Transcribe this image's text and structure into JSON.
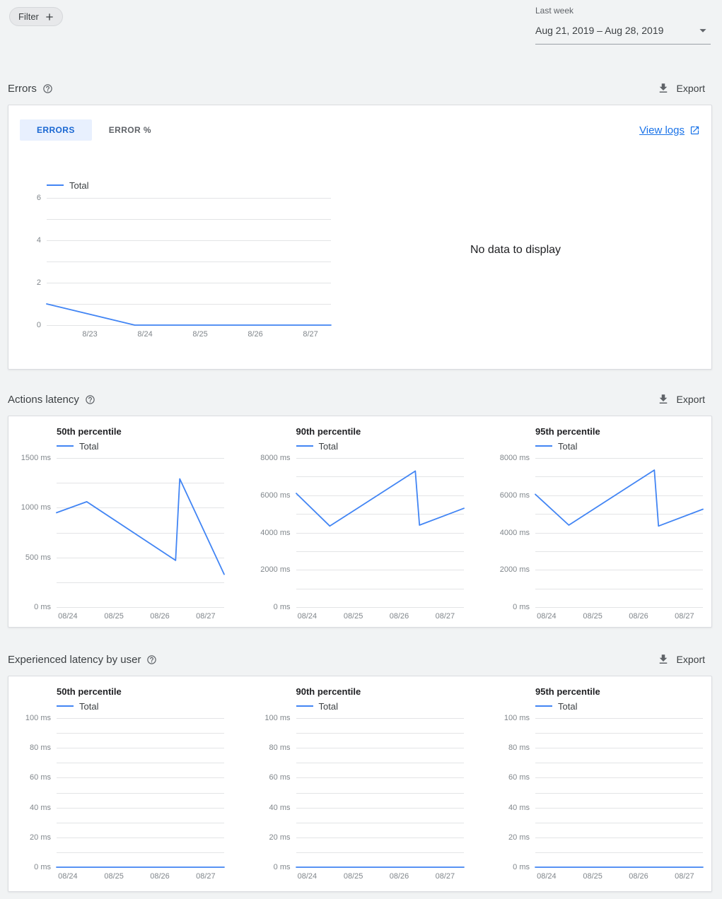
{
  "colors": {
    "line": "#4285f4",
    "accent": "#1a73e8",
    "tab_active_bg": "#e8f0fe",
    "tab_active_text": "#1967d2"
  },
  "icons": {
    "filter_chip": "plus-icon",
    "section_help": "help-icon",
    "export": "download-icon",
    "date_picker": "arrow-drop-down-icon",
    "view_logs": "open-in-new-icon"
  },
  "toolbar": {
    "filter_label": "Filter"
  },
  "date_picker": {
    "preset_label": "Last week",
    "range_value": "Aug 21, 2019 – Aug 28, 2019"
  },
  "sections": {
    "errors": {
      "title": "Errors",
      "export_label": "Export"
    },
    "actions_latency": {
      "title": "Actions latency",
      "export_label": "Export"
    },
    "experienced_latency": {
      "title": "Experienced latency by user",
      "export_label": "Export"
    }
  },
  "errors_card": {
    "tabs": [
      {
        "label": "ERRORS",
        "active": true
      },
      {
        "label": "ERROR %",
        "active": false
      }
    ],
    "view_logs_label": "View logs",
    "no_data_text": "No data to display"
  },
  "chart_data": [
    {
      "id": "errors-over-time",
      "type": "line",
      "ylim": [
        0,
        6
      ],
      "gridline_count": 7,
      "yticks": [
        {
          "v": 6,
          "label": "6"
        },
        {
          "v": 4,
          "label": "4"
        },
        {
          "v": 2,
          "label": "2"
        },
        {
          "v": 0,
          "label": "0"
        }
      ],
      "xticks": [
        {
          "f": 0.152,
          "label": "8/23"
        },
        {
          "f": 0.346,
          "label": "8/24"
        },
        {
          "f": 0.54,
          "label": "8/25"
        },
        {
          "f": 0.734,
          "label": "8/26"
        },
        {
          "f": 0.928,
          "label": "8/27"
        }
      ],
      "series": [
        {
          "name": "Total",
          "points": [
            [
              0,
              1
            ],
            [
              0.31,
              0
            ],
            [
              1,
              0
            ]
          ]
        }
      ]
    },
    {
      "id": "actions-latency-p50",
      "type": "line",
      "title": "50th percentile",
      "ylim": [
        0,
        1500
      ],
      "gridline_count": 7,
      "yticks": [
        {
          "v": 1500,
          "label": "1500 ms"
        },
        {
          "v": 1000,
          "label": "1000 ms"
        },
        {
          "v": 500,
          "label": "500 ms"
        },
        {
          "v": 0,
          "label": "0 ms"
        }
      ],
      "xticks": [
        {
          "f": 0.067,
          "label": "08/24"
        },
        {
          "f": 0.342,
          "label": "08/25"
        },
        {
          "f": 0.616,
          "label": "08/26"
        },
        {
          "f": 0.89,
          "label": "08/27"
        }
      ],
      "series": [
        {
          "name": "Total",
          "points": [
            [
              0,
              950
            ],
            [
              0.18,
              1060
            ],
            [
              0.71,
              470
            ],
            [
              0.735,
              1290
            ],
            [
              1,
              330
            ]
          ]
        }
      ]
    },
    {
      "id": "actions-latency-p90",
      "type": "line",
      "title": "90th percentile",
      "ylim": [
        0,
        8000
      ],
      "gridline_count": 9,
      "yticks": [
        {
          "v": 8000,
          "label": "8000 ms"
        },
        {
          "v": 6000,
          "label": "6000 ms"
        },
        {
          "v": 4000,
          "label": "4000 ms"
        },
        {
          "v": 2000,
          "label": "2000 ms"
        },
        {
          "v": 0,
          "label": "0 ms"
        }
      ],
      "xticks": [
        {
          "f": 0.067,
          "label": "08/24"
        },
        {
          "f": 0.342,
          "label": "08/25"
        },
        {
          "f": 0.616,
          "label": "08/26"
        },
        {
          "f": 0.89,
          "label": "08/27"
        }
      ],
      "series": [
        {
          "name": "Total",
          "points": [
            [
              0,
              6100
            ],
            [
              0.2,
              4350
            ],
            [
              0.71,
              7300
            ],
            [
              0.735,
              4400
            ],
            [
              1,
              5300
            ]
          ]
        }
      ]
    },
    {
      "id": "actions-latency-p95",
      "type": "line",
      "title": "95th percentile",
      "ylim": [
        0,
        8000
      ],
      "gridline_count": 9,
      "yticks": [
        {
          "v": 8000,
          "label": "8000 ms"
        },
        {
          "v": 6000,
          "label": "6000 ms"
        },
        {
          "v": 4000,
          "label": "4000 ms"
        },
        {
          "v": 2000,
          "label": "2000 ms"
        },
        {
          "v": 0,
          "label": "0 ms"
        }
      ],
      "xticks": [
        {
          "f": 0.067,
          "label": "08/24"
        },
        {
          "f": 0.342,
          "label": "08/25"
        },
        {
          "f": 0.616,
          "label": "08/26"
        },
        {
          "f": 0.89,
          "label": "08/27"
        }
      ],
      "series": [
        {
          "name": "Total",
          "points": [
            [
              0,
              6050
            ],
            [
              0.2,
              4400
            ],
            [
              0.71,
              7350
            ],
            [
              0.735,
              4350
            ],
            [
              1,
              5250
            ]
          ]
        }
      ]
    },
    {
      "id": "experienced-latency-p50",
      "type": "line",
      "title": "50th percentile",
      "ylim": [
        0,
        100
      ],
      "gridline_count": 11,
      "yticks": [
        {
          "v": 100,
          "label": "100 ms"
        },
        {
          "v": 80,
          "label": "80 ms"
        },
        {
          "v": 60,
          "label": "60 ms"
        },
        {
          "v": 40,
          "label": "40 ms"
        },
        {
          "v": 20,
          "label": "20 ms"
        },
        {
          "v": 0,
          "label": "0 ms"
        }
      ],
      "xticks": [
        {
          "f": 0.067,
          "label": "08/24"
        },
        {
          "f": 0.342,
          "label": "08/25"
        },
        {
          "f": 0.616,
          "label": "08/26"
        },
        {
          "f": 0.89,
          "label": "08/27"
        }
      ],
      "series": [
        {
          "name": "Total",
          "points": [
            [
              0,
              0
            ],
            [
              1,
              0
            ]
          ]
        }
      ]
    },
    {
      "id": "experienced-latency-p90",
      "type": "line",
      "title": "90th percentile",
      "ylim": [
        0,
        100
      ],
      "gridline_count": 11,
      "yticks": [
        {
          "v": 100,
          "label": "100 ms"
        },
        {
          "v": 80,
          "label": "80 ms"
        },
        {
          "v": 60,
          "label": "60 ms"
        },
        {
          "v": 40,
          "label": "40 ms"
        },
        {
          "v": 20,
          "label": "20 ms"
        },
        {
          "v": 0,
          "label": "0 ms"
        }
      ],
      "xticks": [
        {
          "f": 0.067,
          "label": "08/24"
        },
        {
          "f": 0.342,
          "label": "08/25"
        },
        {
          "f": 0.616,
          "label": "08/26"
        },
        {
          "f": 0.89,
          "label": "08/27"
        }
      ],
      "series": [
        {
          "name": "Total",
          "points": [
            [
              0,
              0
            ],
            [
              1,
              0
            ]
          ]
        }
      ]
    },
    {
      "id": "experienced-latency-p95",
      "type": "line",
      "title": "95th percentile",
      "ylim": [
        0,
        100
      ],
      "gridline_count": 11,
      "yticks": [
        {
          "v": 100,
          "label": "100 ms"
        },
        {
          "v": 80,
          "label": "80 ms"
        },
        {
          "v": 60,
          "label": "60 ms"
        },
        {
          "v": 40,
          "label": "40 ms"
        },
        {
          "v": 20,
          "label": "20 ms"
        },
        {
          "v": 0,
          "label": "0 ms"
        }
      ],
      "xticks": [
        {
          "f": 0.067,
          "label": "08/24"
        },
        {
          "f": 0.342,
          "label": "08/25"
        },
        {
          "f": 0.616,
          "label": "08/26"
        },
        {
          "f": 0.89,
          "label": "08/27"
        }
      ],
      "series": [
        {
          "name": "Total",
          "points": [
            [
              0,
              0
            ],
            [
              1,
              0
            ]
          ]
        }
      ]
    }
  ]
}
